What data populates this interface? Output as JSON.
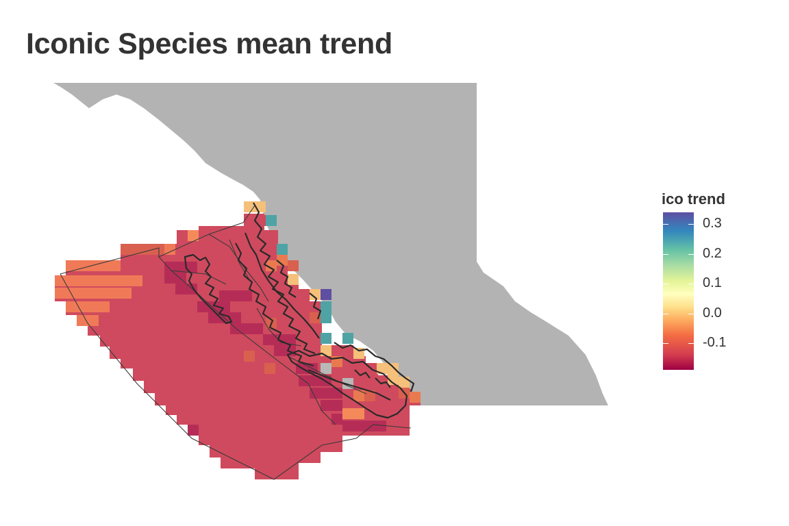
{
  "title": "Iconic Species mean trend",
  "legend": {
    "title": "ico trend",
    "ticks": [
      {
        "label": "0.3",
        "value": 0.3
      },
      {
        "label": "0.2",
        "value": 0.2
      },
      {
        "label": "0.1",
        "value": 0.1
      },
      {
        "label": "0.0",
        "value": 0.0
      },
      {
        "label": "-0.1",
        "value": -0.1
      }
    ],
    "range": [
      -0.19,
      0.34
    ],
    "palette": [
      "#9e0142",
      "#d53e4f",
      "#f46d43",
      "#fdae61",
      "#fee08b",
      "#ffffbf",
      "#e6f598",
      "#abdda4",
      "#66c2a5",
      "#3288bd",
      "#5e4fa2"
    ]
  },
  "colors": {
    "land": "#b3b3b3",
    "background": "#ffffff",
    "grid_default": "#cf4a5e",
    "outline": "#3a3a3a"
  }
}
